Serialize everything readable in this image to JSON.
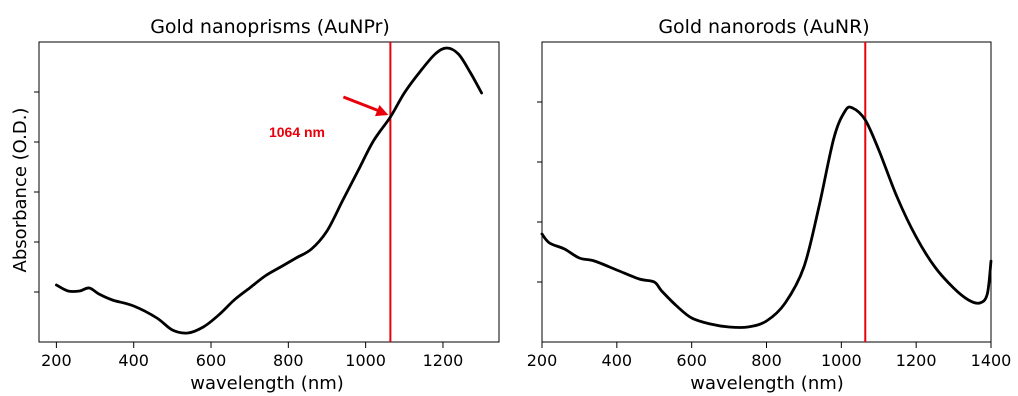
{
  "colors": {
    "curve": "#000000",
    "marker": "#e8000b"
  },
  "chart_data": [
    {
      "type": "line",
      "title": "Gold nanoprisms (AuNPr)",
      "xlabel": "wavelength (nm)",
      "ylabel": "Absorbance (O.D.)",
      "xlim": [
        155,
        1345
      ],
      "ylim": [
        0,
        1
      ],
      "xticks": [
        200,
        400,
        600,
        800,
        1000,
        1200
      ],
      "ytick_count": 5,
      "vline": 1064,
      "annotation": {
        "text": "1064 nm",
        "x": 1064
      },
      "series": [
        {
          "x": [
            200,
            230,
            260,
            285,
            310,
            345,
            400,
            460,
            500,
            540,
            580,
            620,
            660,
            700,
            740,
            780,
            820,
            860,
            900,
            940,
            980,
            1020,
            1064,
            1100,
            1140,
            1180,
            1210,
            1240,
            1270,
            1300
          ],
          "y": [
            0.19,
            0.17,
            0.17,
            0.18,
            0.16,
            0.14,
            0.12,
            0.08,
            0.04,
            0.03,
            0.05,
            0.09,
            0.14,
            0.18,
            0.22,
            0.25,
            0.28,
            0.31,
            0.37,
            0.47,
            0.57,
            0.67,
            0.75,
            0.83,
            0.9,
            0.96,
            0.98,
            0.96,
            0.9,
            0.83
          ]
        }
      ]
    },
    {
      "type": "line",
      "title": "Gold nanorods (AuNR)",
      "xlabel": "wavelength (nm)",
      "ylabel": "",
      "xlim": [
        200,
        1400
      ],
      "ylim": [
        0,
        1
      ],
      "xticks": [
        200,
        400,
        600,
        800,
        1000,
        1200,
        1400
      ],
      "ytick_count": 4,
      "vline": 1064,
      "series": [
        {
          "x": [
            200,
            220,
            260,
            300,
            340,
            400,
            460,
            500,
            520,
            560,
            600,
            650,
            700,
            750,
            800,
            850,
            900,
            940,
            980,
            1010,
            1030,
            1064,
            1100,
            1150,
            1200,
            1250,
            1300,
            1340,
            1370,
            1390,
            1400
          ],
          "y": [
            0.36,
            0.33,
            0.31,
            0.28,
            0.27,
            0.24,
            0.21,
            0.2,
            0.17,
            0.12,
            0.08,
            0.06,
            0.05,
            0.05,
            0.07,
            0.13,
            0.25,
            0.45,
            0.68,
            0.77,
            0.78,
            0.74,
            0.64,
            0.48,
            0.35,
            0.25,
            0.18,
            0.14,
            0.13,
            0.16,
            0.27
          ]
        }
      ]
    }
  ]
}
